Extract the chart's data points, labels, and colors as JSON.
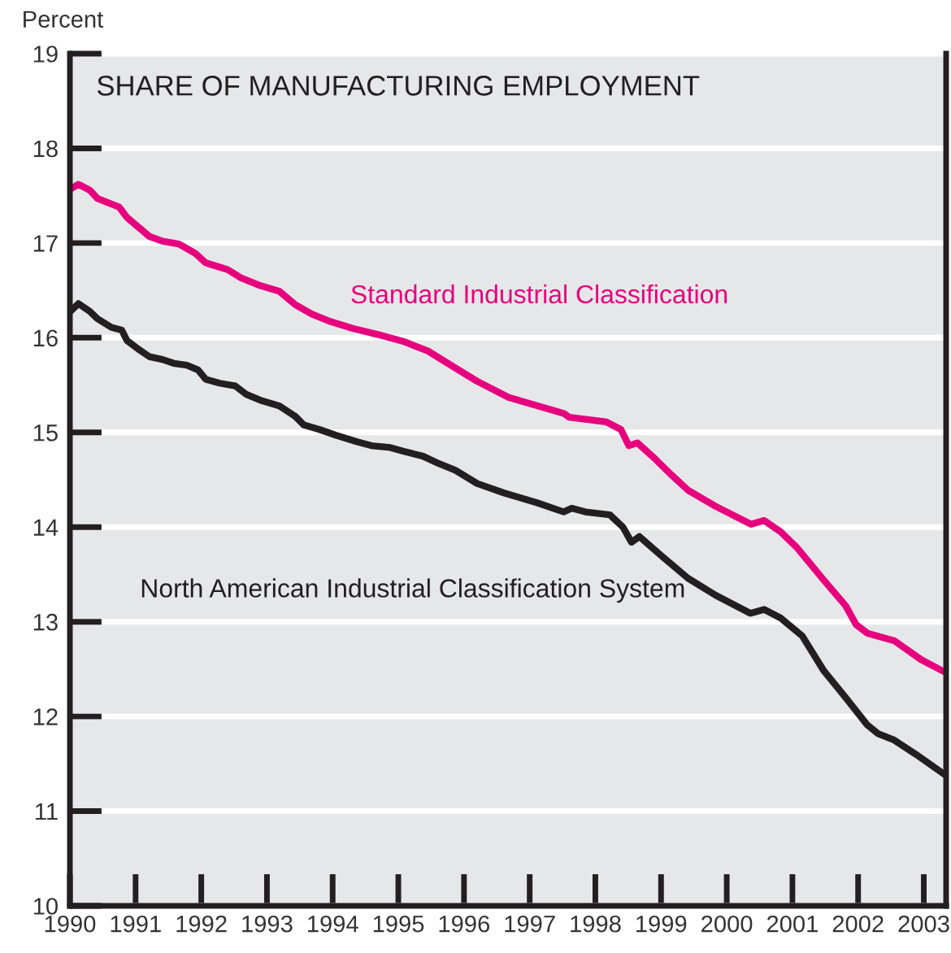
{
  "chart_data": {
    "type": "line",
    "title": "SHARE OF MANUFACTURING EMPLOYMENT",
    "ylabel": "Percent",
    "xlim": [
      1990,
      2003.34
    ],
    "xticks": [
      1990,
      1991,
      1992,
      1993,
      1994,
      1995,
      1996,
      1997,
      1998,
      1999,
      2000,
      2001,
      2002,
      2003
    ],
    "ylim": [
      10,
      19
    ],
    "yticks": [
      10,
      11,
      12,
      13,
      14,
      15,
      16,
      17,
      18,
      19
    ],
    "grid": "y",
    "legend": false,
    "marker": "none",
    "line_style": "solid",
    "series": [
      {
        "name": "Standard Industrial Classification",
        "color": "#e6007e",
        "x": [
          1990.01,
          1990.13,
          1990.3,
          1990.42,
          1990.75,
          1990.87,
          1991.21,
          1991.41,
          1991.66,
          1991.91,
          1992.07,
          1992.4,
          1992.61,
          1992.9,
          1993.19,
          1993.43,
          1993.68,
          1993.97,
          1994.3,
          1994.71,
          1995.08,
          1995.45,
          1995.87,
          1996.2,
          1996.68,
          1997.52,
          1997.6,
          1998.17,
          1998.39,
          1998.51,
          1998.64,
          1998.91,
          1999.16,
          1999.41,
          1999.83,
          2000.37,
          2000.57,
          2000.82,
          2001.06,
          2001.49,
          2001.81,
          2001.97,
          2002.14,
          2002.55,
          2002.96,
          2003.29
        ],
        "values": [
          17.57,
          17.62,
          17.56,
          17.47,
          17.38,
          17.27,
          17.07,
          17.02,
          16.99,
          16.89,
          16.79,
          16.72,
          16.63,
          16.55,
          16.49,
          16.35,
          16.25,
          16.17,
          16.1,
          16.03,
          15.96,
          15.86,
          15.68,
          15.54,
          15.37,
          15.2,
          15.16,
          15.11,
          15.03,
          14.86,
          14.89,
          14.72,
          14.55,
          14.39,
          14.22,
          14.03,
          14.07,
          13.95,
          13.79,
          13.43,
          13.17,
          12.97,
          12.88,
          12.8,
          12.6,
          12.48
        ]
      },
      {
        "name": "North American Industrial Classification System",
        "color": "#231f20",
        "x": [
          1990.01,
          1990.13,
          1990.3,
          1990.42,
          1990.63,
          1990.79,
          1990.87,
          1991.04,
          1991.21,
          1991.41,
          1991.58,
          1991.78,
          1991.95,
          1992.07,
          1992.28,
          1992.52,
          1992.69,
          1992.9,
          1993.19,
          1993.43,
          1993.56,
          1993.8,
          1994.05,
          1994.38,
          1994.59,
          1994.88,
          1995.08,
          1995.37,
          1995.62,
          1995.87,
          1996.2,
          1996.61,
          1997.1,
          1997.52,
          1997.64,
          1997.85,
          1998.22,
          1998.42,
          1998.55,
          1998.67,
          1999.0,
          1999.41,
          1999.83,
          2000.36,
          2000.57,
          2000.82,
          2001.15,
          2001.48,
          2001.81,
          2002.14,
          2002.3,
          2002.55,
          2002.88,
          2003.29
        ],
        "values": [
          16.28,
          16.36,
          16.28,
          16.2,
          16.11,
          16.08,
          15.97,
          15.88,
          15.8,
          15.77,
          15.73,
          15.71,
          15.66,
          15.56,
          15.52,
          15.49,
          15.4,
          15.34,
          15.28,
          15.17,
          15.08,
          15.03,
          14.97,
          14.9,
          14.86,
          14.84,
          14.8,
          14.75,
          14.67,
          14.6,
          14.46,
          14.36,
          14.26,
          14.16,
          14.2,
          14.16,
          14.13,
          14.0,
          13.84,
          13.9,
          13.7,
          13.46,
          13.28,
          13.09,
          13.13,
          13.04,
          12.85,
          12.48,
          12.2,
          11.91,
          11.82,
          11.75,
          11.6,
          11.4
        ]
      }
    ]
  }
}
